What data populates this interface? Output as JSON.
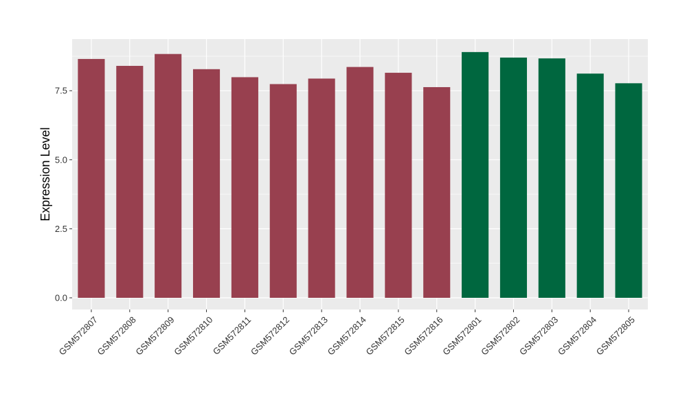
{
  "chart_data": {
    "type": "bar",
    "title": "",
    "xlabel": "",
    "ylabel": "Expression Level",
    "ylim": [
      -0.55,
      9.1
    ],
    "yticks": [
      0.0,
      2.5,
      5.0,
      7.5
    ],
    "ytick_labels": [
      "0.0",
      "2.5",
      "5.0",
      "7.5"
    ],
    "grid": true,
    "legend": "none",
    "categories": [
      "GSM572807",
      "GSM572808",
      "GSM572809",
      "GSM572810",
      "GSM572811",
      "GSM572812",
      "GSM572813",
      "GSM572814",
      "GSM572815",
      "GSM572816",
      "GSM572801",
      "GSM572802",
      "GSM572803",
      "GSM572804",
      "GSM572805"
    ],
    "values": [
      8.65,
      8.4,
      8.83,
      8.28,
      7.99,
      7.74,
      7.94,
      8.36,
      8.15,
      7.63,
      8.9,
      8.7,
      8.67,
      8.12,
      7.77
    ],
    "group_of_bar": [
      0,
      0,
      0,
      0,
      0,
      0,
      0,
      0,
      0,
      0,
      1,
      1,
      1,
      1,
      1
    ],
    "group_colors": [
      "#98404F",
      "#00673F"
    ],
    "panel_color": "#EBEBEB",
    "grid_color": "#FFFFFF"
  }
}
